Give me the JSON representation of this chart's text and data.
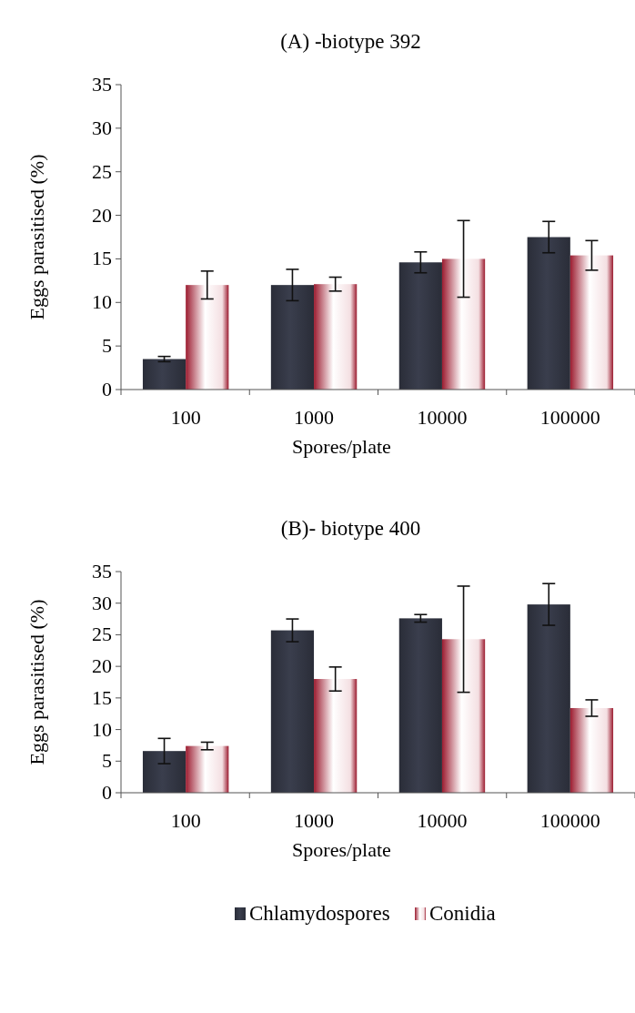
{
  "chart_data": [
    {
      "type": "bar",
      "title": "(A) -biotype 392",
      "xlabel": "Spores/plate",
      "ylabel": "Eggs parasitised (%)",
      "categories": [
        "100",
        "1000",
        "10000",
        "100000"
      ],
      "ylim": [
        0,
        35
      ],
      "yticks": [
        0,
        5,
        10,
        15,
        20,
        25,
        30,
        35
      ],
      "legend": false,
      "series": [
        {
          "color": "#2a2d38",
          "values": [
            3.5,
            12,
            14.6,
            17.5
          ],
          "errors": [
            0.3,
            1.8,
            1.2,
            1.8
          ]
        },
        {
          "color": "#9c1c30",
          "values": [
            12,
            12.1,
            15,
            15.4
          ],
          "errors": [
            1.6,
            0.8,
            4.4,
            1.7
          ]
        }
      ]
    },
    {
      "type": "bar",
      "title": "(B)- biotype 400",
      "xlabel": "Spores/plate",
      "ylabel": "Eggs parasitised (%)",
      "categories": [
        "100",
        "1000",
        "10000",
        "100000"
      ],
      "ylim": [
        0,
        35
      ],
      "yticks": [
        0,
        5,
        10,
        15,
        20,
        25,
        30,
        35
      ],
      "legend": "bottom",
      "series": [
        {
          "name": "Chlamydospores",
          "color": "#2a2d38",
          "values": [
            6.6,
            25.7,
            27.6,
            29.8
          ],
          "errors": [
            2,
            1.8,
            0.6,
            3.3
          ]
        },
        {
          "name": "Conidia",
          "color": "#9c1c30",
          "values": [
            7.4,
            18,
            24.3,
            13.4
          ],
          "errors": [
            0.6,
            1.9,
            8.4,
            1.3
          ]
        }
      ]
    }
  ]
}
